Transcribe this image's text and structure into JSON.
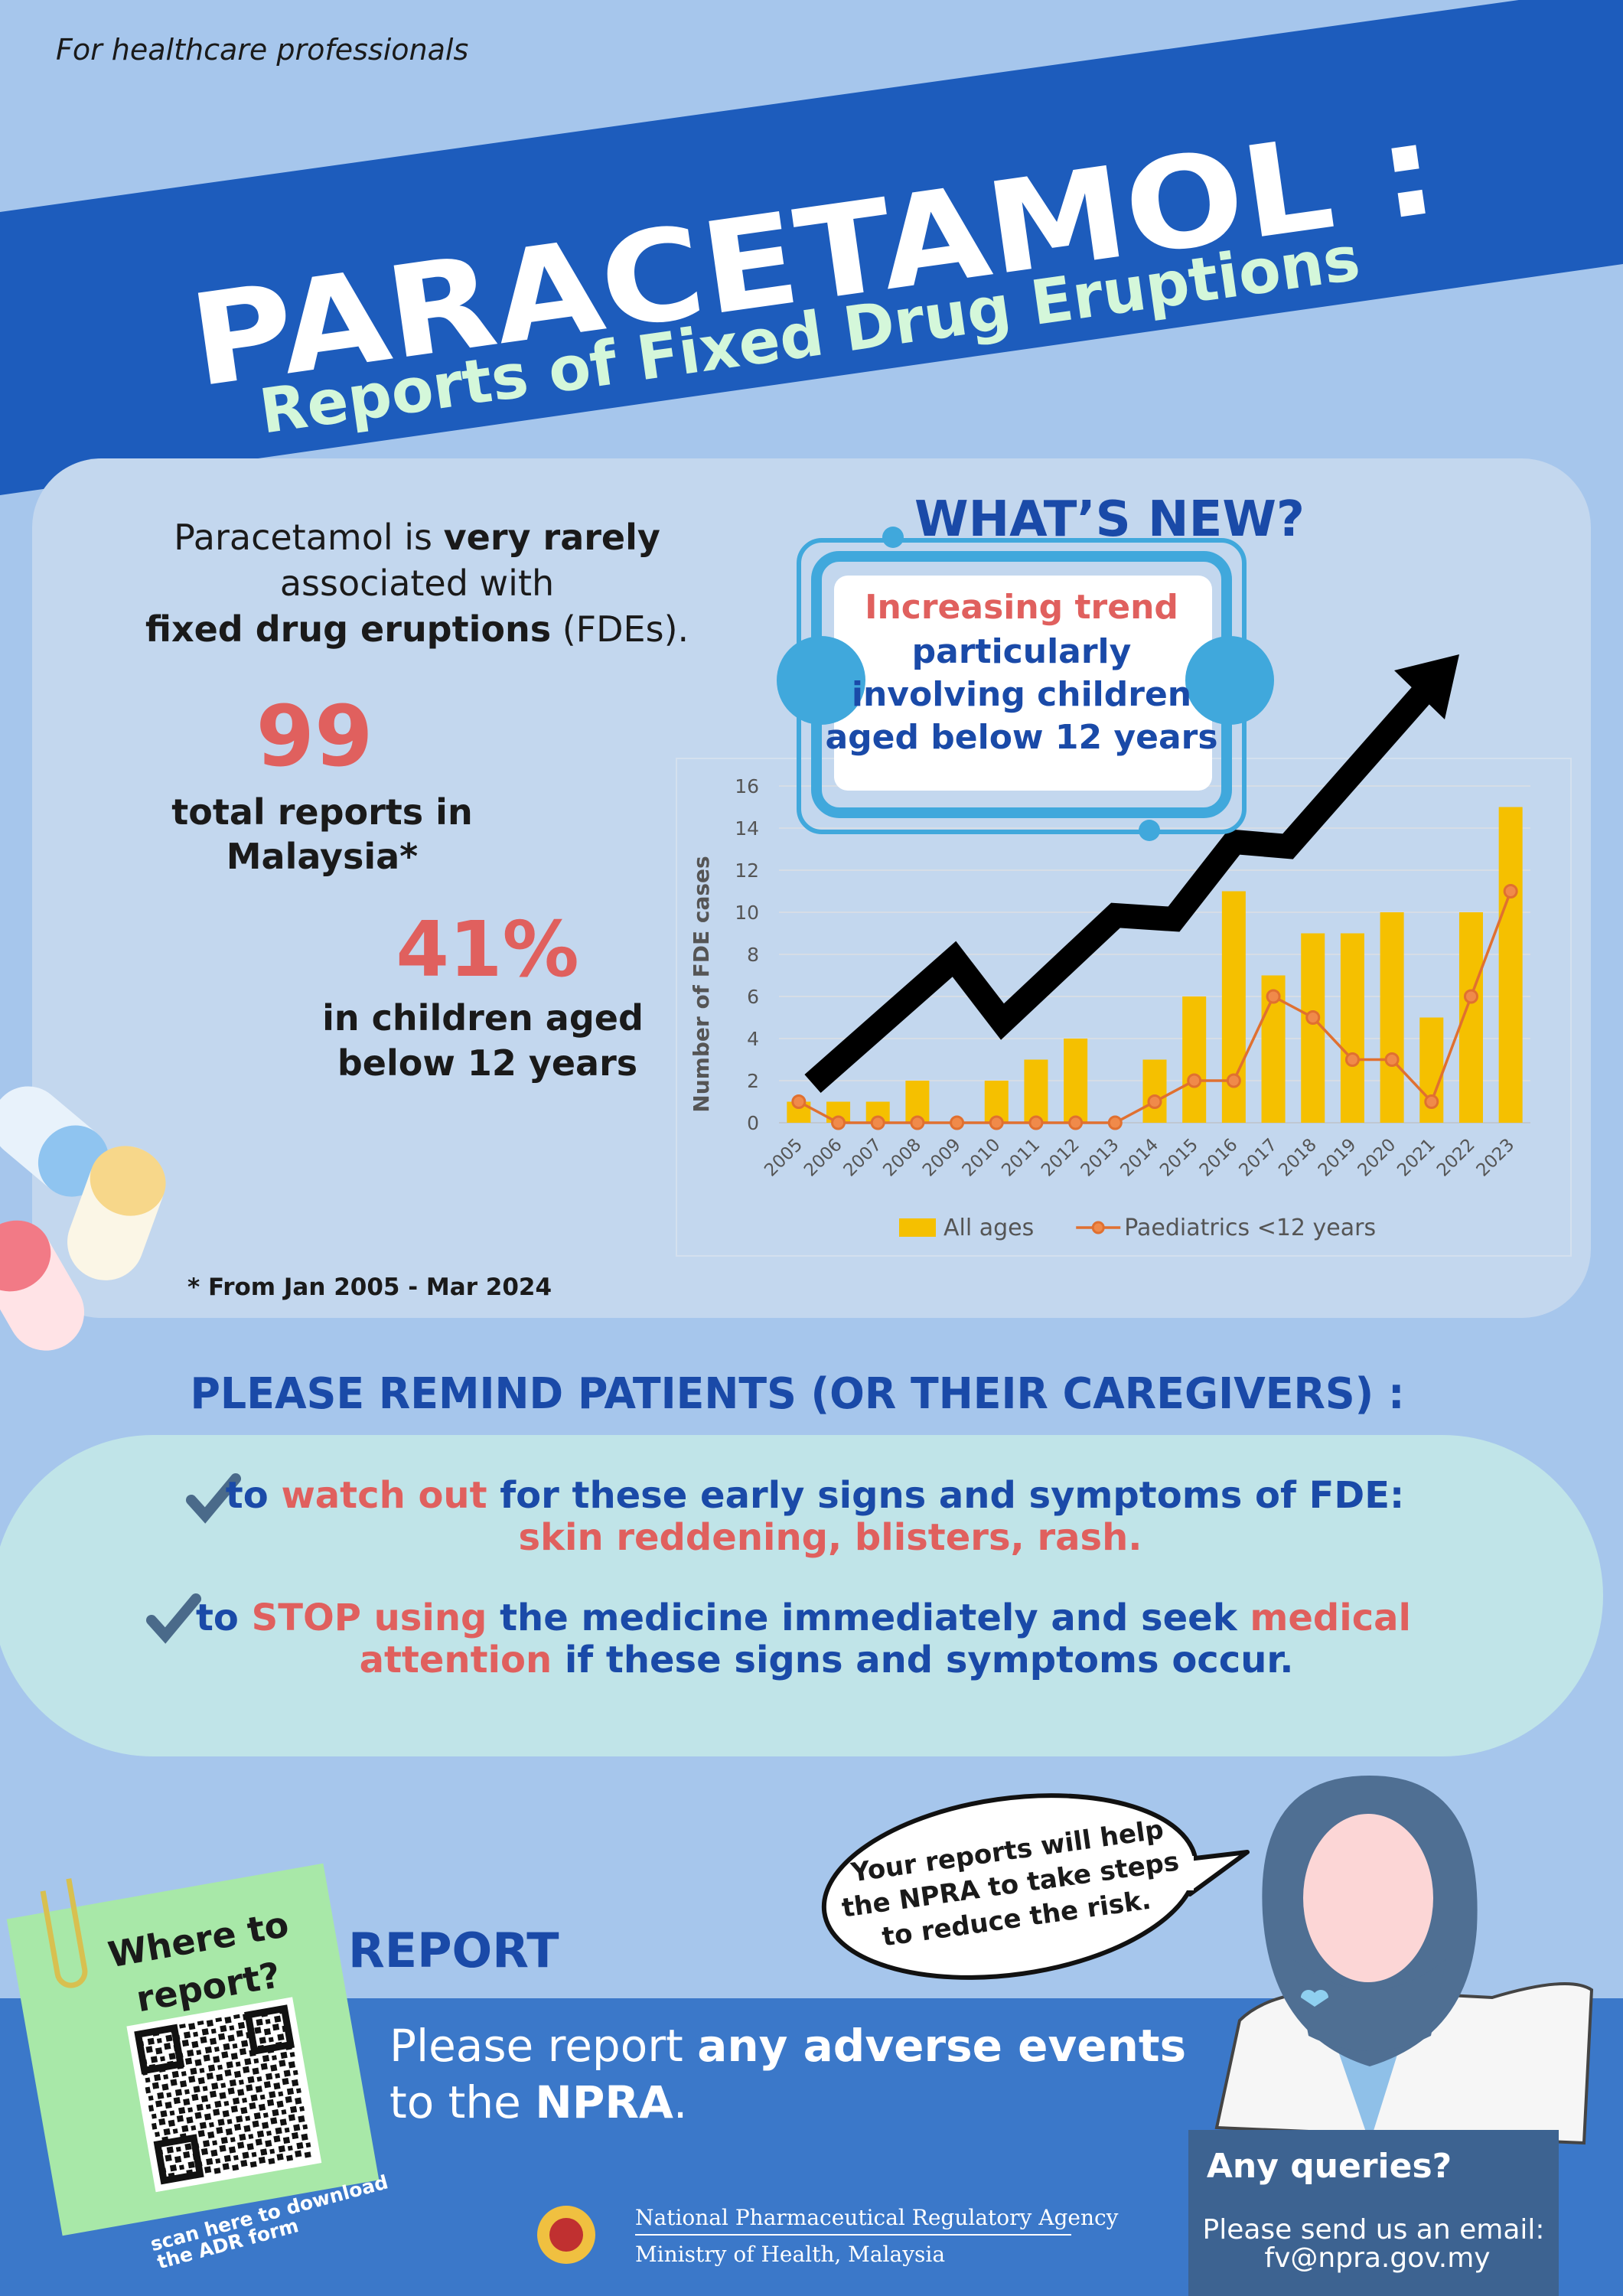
{
  "audience": "For healthcare professionals",
  "title": "PARACETAMOL :",
  "subtitle": "Reports of Fixed Drug Eruptions",
  "intro": {
    "lines": [
      [
        "Paracetamol is ",
        "very rarely"
      ],
      [
        "associated with"
      ],
      [
        "fixed drug eruptions",
        " (FDEs)."
      ]
    ]
  },
  "stats": [
    {
      "value": "99",
      "label": [
        "total reports in",
        "Malaysia*"
      ]
    },
    {
      "value": "41%",
      "label": [
        "in children aged",
        "below 12 years"
      ]
    }
  ],
  "footnote": "* From Jan 2005 - Mar 2024",
  "whats_new": {
    "heading": "WHAT’S NEW?",
    "lines": [
      "Increasing trend",
      "particularly",
      "involving children",
      "aged below 12 years"
    ]
  },
  "chart_data": {
    "type": "bar",
    "y_label": "Number of FDE cases",
    "categories": [
      "2005",
      "2006",
      "2007",
      "2008",
      "2009",
      "2010",
      "2011",
      "2012",
      "2013",
      "2014",
      "2015",
      "2016",
      "2017",
      "2018",
      "2019",
      "2020",
      "2021",
      "2022",
      "2023"
    ],
    "series": [
      {
        "name": "All ages",
        "type": "bar",
        "color": "#f5c000",
        "values": [
          1,
          1,
          1,
          2,
          0,
          2,
          3,
          4,
          0,
          3,
          6,
          11,
          7,
          9,
          9,
          10,
          5,
          10,
          15
        ]
      },
      {
        "name": "Paediatrics <12 years",
        "type": "line",
        "color": "#e07030",
        "values": [
          1,
          0,
          0,
          0,
          0,
          0,
          0,
          0,
          0,
          1,
          2,
          2,
          6,
          5,
          3,
          3,
          1,
          6,
          11
        ]
      }
    ],
    "ylim": [
      0,
      16
    ],
    "yticks": [
      0,
      2,
      4,
      6,
      8,
      10,
      12,
      14,
      16
    ],
    "grid": true,
    "legend": "bottom"
  },
  "reminder": {
    "heading": "PLEASE REMIND PATIENTS (OR THEIR CAREGIVERS) :",
    "items": [
      [
        [
          "to ",
          "watch out",
          " for these early signs and symptoms of FDE:"
        ],
        [
          "skin reddening, blisters, rash."
        ]
      ],
      [
        [
          "to ",
          "STOP using",
          " the medicine immediately and seek ",
          "medical"
        ],
        [
          "attention",
          " if these signs and symptoms occur."
        ]
      ]
    ]
  },
  "note": {
    "lines": [
      "Where to",
      "report?"
    ],
    "scan": [
      "scan here to download",
      "the ADR form"
    ]
  },
  "bubble": [
    "Your reports will help",
    "the NPRA to take steps",
    "to reduce the risk."
  ],
  "report": {
    "heading": "REPORT",
    "lines": [
      [
        "Please report ",
        "any adverse events"
      ],
      [
        "to the ",
        "NPRA",
        "."
      ]
    ]
  },
  "agency": [
    "National Pharmaceutical Regulatory Agency",
    "Ministry of Health, Malaysia"
  ],
  "queries": {
    "heading": "Any queries?",
    "lines": [
      "Please send us an email:",
      "fv@npra.gov.my"
    ]
  }
}
